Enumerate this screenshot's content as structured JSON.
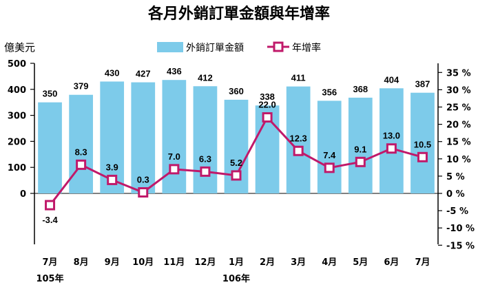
{
  "chart_data": {
    "type": "bar+line",
    "title": "各月外銷訂單金額與年增率",
    "ylabel": "億美元",
    "categories": [
      "7月",
      "8月",
      "9月",
      "10月",
      "11月",
      "12月",
      "1月",
      "2月",
      "3月",
      "4月",
      "5月",
      "6月",
      "7月"
    ],
    "year_labels": [
      {
        "label": "105年",
        "category_index": 0
      },
      {
        "label": "106年",
        "category_index": 6
      }
    ],
    "series": [
      {
        "name": "外銷訂單金額",
        "type": "bar",
        "axis": "left",
        "color": "#7dcbea",
        "values": [
          350,
          379,
          430,
          427,
          436,
          412,
          360,
          338,
          411,
          356,
          368,
          404,
          387
        ]
      },
      {
        "name": "年增率",
        "type": "line",
        "axis": "right",
        "color": "#c0196a",
        "values": [
          -3.4,
          8.3,
          3.9,
          0.3,
          7.0,
          6.3,
          5.2,
          22.0,
          12.3,
          7.4,
          9.1,
          13.0,
          10.5
        ],
        "value_labels": [
          "-3.4",
          "8.3",
          "3.9",
          "0.3",
          "7.0",
          "6.3",
          "5.2",
          "22.0",
          "12.3",
          "7.4",
          "9.1",
          "13.0",
          "10.5"
        ]
      }
    ],
    "left_axis": {
      "ticks": [
        500,
        400,
        300,
        200,
        100,
        0
      ],
      "tick_labels": [
        "500",
        "400",
        "300",
        "200",
        "100",
        "0"
      ],
      "range": [
        -200,
        500
      ]
    },
    "right_axis": {
      "ticks": [
        35,
        30,
        25,
        20,
        15,
        10,
        5,
        0,
        -5,
        -10,
        -15
      ],
      "tick_labels": [
        "35 %",
        "30 %",
        "25 %",
        "20 %",
        "15 %",
        "10 %",
        "5 %",
        "0 %",
        "-5 %",
        "-10 %",
        "-15 %"
      ],
      "range": [
        -15,
        35
      ]
    },
    "legend": {
      "placement": "top-center",
      "items": [
        "外銷訂單金額",
        "年增率"
      ]
    },
    "grid": false
  }
}
